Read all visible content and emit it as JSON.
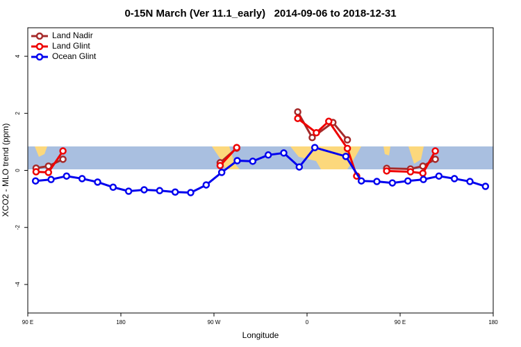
{
  "chart_data": {
    "type": "line",
    "title": "0-15N March (Ver 11.1_early)   2014-09-06 to 2018-12-31",
    "x_label": "Longitude",
    "y_label": "XCO2 - MLO trend (ppm)",
    "xlim": [
      90,
      540
    ],
    "xticks": [
      {
        "value": 90,
        "label": "90 E"
      },
      {
        "value": 180,
        "label": "180"
      },
      {
        "value": 270,
        "label": "90 W"
      },
      {
        "value": 360,
        "label": "0"
      },
      {
        "value": 450,
        "label": "90 E"
      },
      {
        "value": 540,
        "label": "180"
      }
    ],
    "ylim": [
      -5,
      5
    ],
    "yticks": [
      -4,
      -2,
      0,
      2,
      4
    ],
    "grid": false,
    "legend": "top-left",
    "series": [
      {
        "name": "Land Nadir",
        "color": "#a52a2a",
        "x": [
          98,
          110,
          124,
          null,
          276,
          292,
          null,
          351,
          365,
          385,
          399,
          null,
          437,
          460,
          472,
          484
        ],
        "values": [
          0.08,
          0.15,
          0.39,
          null,
          0.27,
          0.78,
          null,
          2.05,
          1.15,
          1.68,
          1.07,
          null,
          0.07,
          0.05,
          0.15,
          0.39
        ]
      },
      {
        "name": "Land Glint",
        "color": "#ee0000",
        "x": [
          98,
          110,
          124,
          null,
          276,
          292,
          null,
          351,
          369,
          381,
          399,
          408,
          null,
          437,
          460,
          472,
          484
        ],
        "values": [
          -0.05,
          -0.07,
          0.68,
          null,
          0.17,
          0.8,
          null,
          1.82,
          1.32,
          1.72,
          0.77,
          -0.2,
          null,
          -0.02,
          -0.05,
          -0.1,
          0.68
        ]
      },
      {
        "name": "Ocean Glint",
        "color": "#0000ee",
        "x": [
          97.5,
          112.5,
          127.5,
          142.5,
          157.5,
          172.5,
          187.5,
          202.5,
          217.5,
          232.5,
          247.5,
          262.5,
          277.5,
          292.5,
          307.5,
          322.5,
          337.5,
          352.5,
          367.5,
          397.5,
          412.5,
          427.5,
          442.5,
          457.5,
          472.5,
          487.5,
          502.5,
          517.5,
          532.5
        ],
        "values": [
          -0.37,
          -0.32,
          -0.2,
          -0.29,
          -0.41,
          -0.59,
          -0.73,
          -0.68,
          -0.71,
          -0.76,
          -0.78,
          -0.51,
          -0.07,
          0.34,
          0.32,
          0.54,
          0.61,
          0.12,
          0.8,
          0.49,
          -0.37,
          -0.39,
          -0.44,
          -0.37,
          -0.32,
          -0.2,
          -0.29,
          -0.39,
          -0.56
        ]
      }
    ]
  }
}
